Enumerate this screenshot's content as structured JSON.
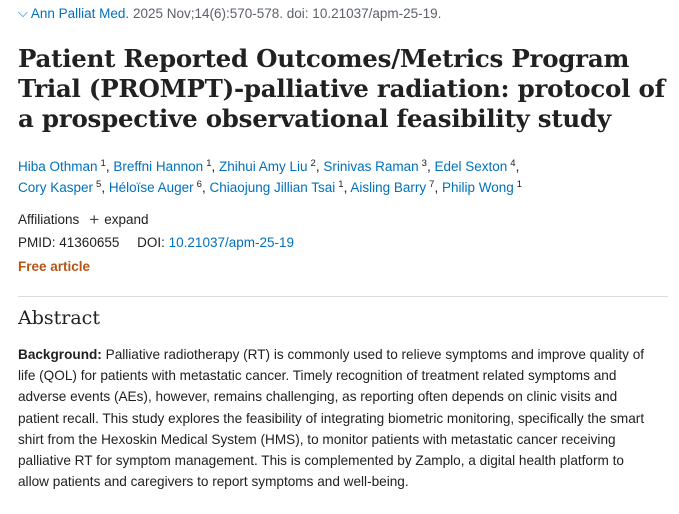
{
  "citation": {
    "journal": "Ann Palliat Med.",
    "details": "2025 Nov;14(6):570-578. doi: 10.21037/apm-25-19."
  },
  "title": "Patient Reported Outcomes/Metrics Program Trial (PROMPT)-palliative radiation: protocol of a prospective observational feasibility study",
  "authors": [
    {
      "name": "Hiba Othman",
      "aff": "1"
    },
    {
      "name": "Breffni Hannon",
      "aff": "1"
    },
    {
      "name": "Zhihui Amy Liu",
      "aff": "2"
    },
    {
      "name": "Srinivas Raman",
      "aff": "3"
    },
    {
      "name": "Edel Sexton",
      "aff": "4"
    },
    {
      "name": "Cory Kasper",
      "aff": "5"
    },
    {
      "name": "Héloïse Auger",
      "aff": "6"
    },
    {
      "name": "Chiaojung Jillian Tsai",
      "aff": "1"
    },
    {
      "name": "Aisling Barry",
      "aff": "7"
    },
    {
      "name": "Philip Wong",
      "aff": "1"
    }
  ],
  "affiliations": {
    "label": "Affiliations",
    "expand_label": "expand"
  },
  "ids": {
    "pmid_label": "PMID:",
    "pmid": "41360655",
    "doi_label": "DOI:",
    "doi": "10.21037/apm-25-19"
  },
  "free_article": "Free article",
  "abstract": {
    "heading": "Abstract",
    "background_label": "Background:",
    "background_text": "Palliative radiotherapy (RT) is commonly used to relieve symptoms and improve quality of life (QOL) for patients with metastatic cancer. Timely recognition of treatment related symptoms and adverse events (AEs), however, remains challenging, as reporting often depends on clinic visits and patient recall. This study explores the feasibility of integrating biometric monitoring, specifically the smart shirt from the Hexoskin Medical System (HMS), to monitor patients with metastatic cancer receiving palliative RT for symptom management. This is complemented by Zamplo, a digital health platform to allow patients and caregivers to report symptoms and well-being."
  },
  "colors": {
    "link": "#0071bc",
    "free_article": "#b55515",
    "text": "#212121"
  },
  "icons": {
    "journal_arrow": "chevron-down-icon",
    "affiliations_expand": "plus-icon"
  }
}
